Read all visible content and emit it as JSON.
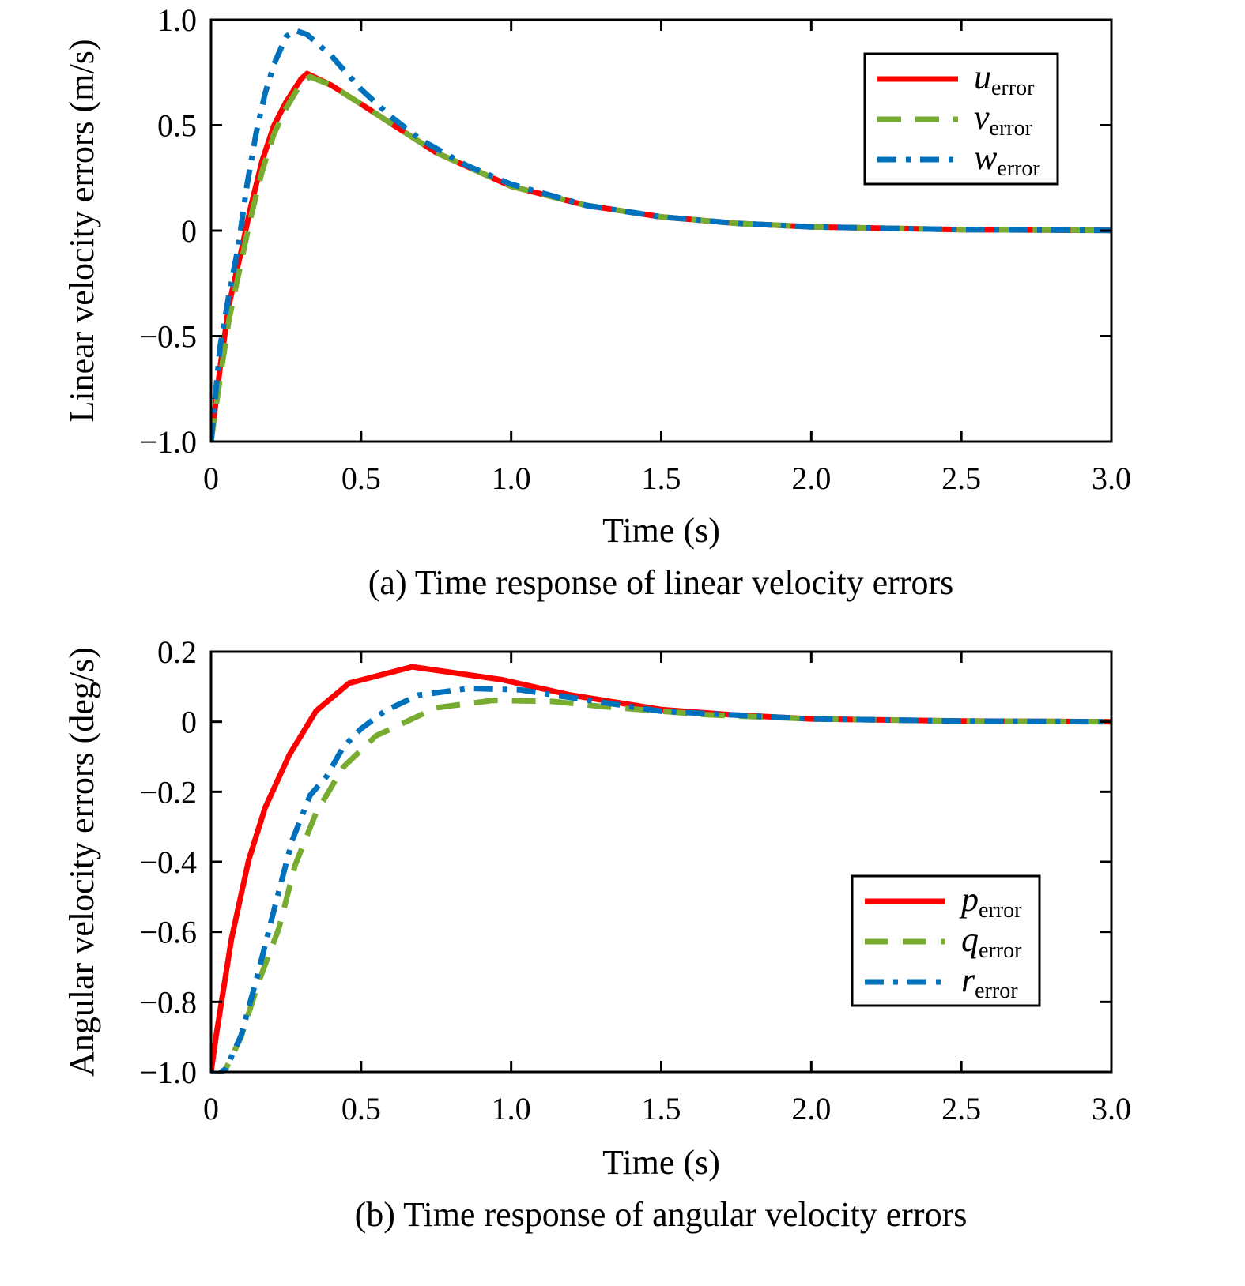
{
  "chart_data": [
    {
      "type": "line",
      "caption": "(a) Time response of linear velocity errors",
      "xlabel": "Time (s)",
      "ylabel": "Linear velocity errors (m/s)",
      "xlim": [
        0,
        3.0
      ],
      "ylim": [
        -1.0,
        1.0
      ],
      "xticks": [
        0,
        0.5,
        1.0,
        1.5,
        2.0,
        2.5,
        3.0
      ],
      "xtick_labels": [
        "0",
        "0.5",
        "1.0",
        "1.5",
        "2.0",
        "2.5",
        "3.0"
      ],
      "yticks": [
        1.0,
        0.5,
        0,
        -0.5,
        -1.0
      ],
      "ytick_labels": [
        "1.0",
        "0.5",
        "0",
        "−0.5",
        "−1.0"
      ],
      "grid": false,
      "legend_position": "top-right",
      "series": [
        {
          "name": "u_error",
          "symbol": "u",
          "subscript": "error",
          "color": "#ff0000",
          "style": "solid",
          "x": [
            0,
            0.03,
            0.06,
            0.1,
            0.13,
            0.17,
            0.21,
            0.25,
            0.3,
            0.32,
            0.4,
            0.5,
            0.75,
            1.0,
            1.25,
            1.5,
            1.75,
            2.0,
            2.5,
            3.0
          ],
          "y": [
            -1,
            -0.65,
            -0.35,
            -0.1,
            0.1,
            0.33,
            0.5,
            0.61,
            0.72,
            0.745,
            0.69,
            0.6,
            0.37,
            0.21,
            0.12,
            0.065,
            0.035,
            0.018,
            0.005,
            0.001
          ]
        },
        {
          "name": "v_error",
          "symbol": "v",
          "subscript": "error",
          "color": "#77ac30",
          "style": "dashed",
          "x": [
            0,
            0.03,
            0.06,
            0.1,
            0.13,
            0.17,
            0.21,
            0.25,
            0.3,
            0.33,
            0.4,
            0.5,
            0.75,
            1.0,
            1.25,
            1.5,
            1.75,
            2.0,
            2.5,
            3.0
          ],
          "y": [
            -1,
            -0.7,
            -0.42,
            -0.15,
            0.05,
            0.28,
            0.46,
            0.58,
            0.7,
            0.73,
            0.69,
            0.6,
            0.37,
            0.21,
            0.12,
            0.065,
            0.035,
            0.018,
            0.005,
            0.001
          ]
        },
        {
          "name": "w_error",
          "symbol": "w",
          "subscript": "error",
          "color": "#0072bd",
          "style": "dashdot",
          "x": [
            0,
            0.03,
            0.06,
            0.09,
            0.12,
            0.15,
            0.18,
            0.21,
            0.25,
            0.28,
            0.32,
            0.4,
            0.5,
            0.6,
            0.7,
            0.85,
            1.0,
            1.25,
            1.5,
            1.75,
            2.0,
            2.5,
            3.0
          ],
          "y": [
            -1,
            -0.55,
            -0.3,
            -0.08,
            0.22,
            0.46,
            0.65,
            0.79,
            0.92,
            0.95,
            0.93,
            0.83,
            0.67,
            0.54,
            0.43,
            0.31,
            0.22,
            0.12,
            0.065,
            0.035,
            0.018,
            0.005,
            0.001
          ]
        }
      ]
    },
    {
      "type": "line",
      "caption": "(b) Time response of angular velocity errors",
      "xlabel": "Time (s)",
      "ylabel": "Angular velocity errors (deg/s)",
      "xlim": [
        0,
        3.0
      ],
      "ylim": [
        -1.0,
        0.2
      ],
      "xticks": [
        0,
        0.5,
        1.0,
        1.5,
        2.0,
        2.5,
        3.0
      ],
      "xtick_labels": [
        "0",
        "0.5",
        "1.0",
        "1.5",
        "2.0",
        "2.5",
        "3.0"
      ],
      "yticks": [
        0.2,
        0,
        -0.2,
        -0.4,
        -0.6,
        -0.8,
        -1.0
      ],
      "ytick_labels": [
        "0.2",
        "0",
        "−0.2",
        "−0.4",
        "−0.6",
        "−0.8",
        "−1.0"
      ],
      "grid": false,
      "legend_position": "bottom-right",
      "series": [
        {
          "name": "p_error",
          "symbol": "p",
          "subscript": "error",
          "color": "#ff0000",
          "style": "solid",
          "x": [
            0,
            0.017,
            0.068,
            0.125,
            0.18,
            0.26,
            0.35,
            0.46,
            0.67,
            0.97,
            1.2,
            1.5,
            1.73,
            2.0,
            2.5,
            3.0
          ],
          "y": [
            -1,
            -0.896,
            -0.62,
            -0.396,
            -0.246,
            -0.096,
            0.031,
            0.11,
            0.157,
            0.12,
            0.076,
            0.035,
            0.02,
            0.008,
            0.002,
            0
          ]
        },
        {
          "name": "q_error",
          "symbol": "q",
          "subscript": "error",
          "color": "#77ac30",
          "style": "dashed",
          "x": [
            0,
            0.02,
            0.05,
            0.1,
            0.16,
            0.226,
            0.28,
            0.35,
            0.44,
            0.55,
            0.75,
            0.94,
            1.14,
            1.31,
            1.65,
            2.0,
            2.5,
            3.0
          ],
          "y": [
            -1,
            -1.01,
            -0.99,
            -0.9,
            -0.74,
            -0.59,
            -0.41,
            -0.26,
            -0.13,
            -0.04,
            0.04,
            0.061,
            0.058,
            0.043,
            0.02,
            0.008,
            0.002,
            0
          ]
        },
        {
          "name": "r_error",
          "symbol": "r",
          "subscript": "error",
          "color": "#0072bd",
          "style": "dashdot",
          "x": [
            0,
            0.02,
            0.05,
            0.1,
            0.153,
            0.215,
            0.27,
            0.33,
            0.385,
            0.44,
            0.5,
            0.58,
            0.69,
            0.86,
            1.03,
            1.2,
            1.5,
            2.0,
            2.5,
            3.0
          ],
          "y": [
            -1,
            -1.01,
            -0.99,
            -0.896,
            -0.73,
            -0.52,
            -0.34,
            -0.21,
            -0.156,
            -0.073,
            -0.02,
            0.031,
            0.076,
            0.095,
            0.091,
            0.069,
            0.03,
            0.008,
            0.002,
            0
          ]
        }
      ]
    }
  ]
}
